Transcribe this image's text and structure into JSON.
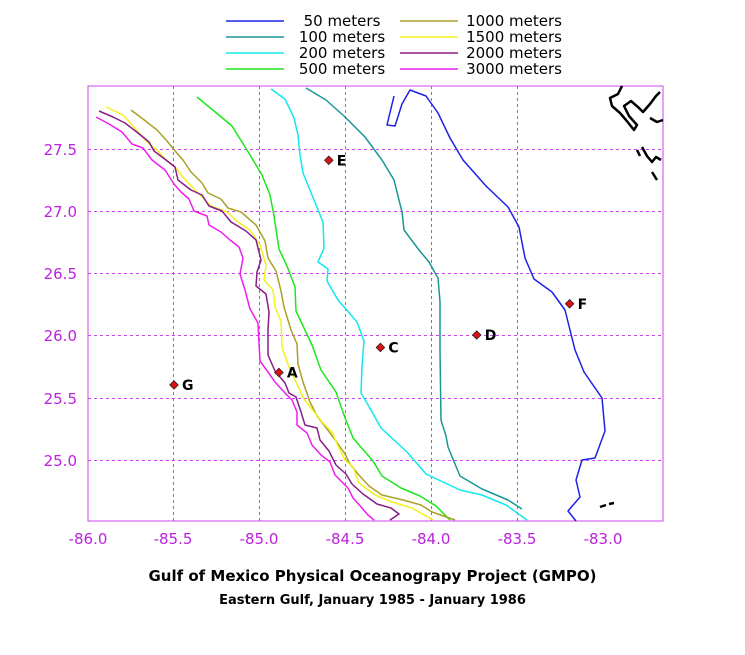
{
  "title": "Gulf of Mexico Physical Oceanograpy Project (GMPO)",
  "subtitle": "Eastern Gulf, January 1985 - January 1986",
  "legend": [
    {
      "label": "50 meters",
      "color": "#1e22e6"
    },
    {
      "label": "100 meters",
      "color": "#1a9696"
    },
    {
      "label": "200 meters",
      "color": "#11e8ee"
    },
    {
      "label": "500 meters",
      "color": "#1ee61e"
    },
    {
      "label": "1000 meters",
      "color": "#aaa028"
    },
    {
      "label": "1500 meters",
      "color": "#f2f21c"
    },
    {
      "label": "2000 meters",
      "color": "#881c88"
    },
    {
      "label": "3000 meters",
      "color": "#ee1eee"
    }
  ],
  "axes": {
    "x_ticks": [
      "-86.0",
      "-85.5",
      "-85.0",
      "-84.5",
      "-84.0",
      "-83.5",
      "-83.0"
    ],
    "y_ticks": [
      "27.5",
      "27.0",
      "26.5",
      "26.0",
      "25.5",
      "25.0"
    ],
    "tick_color": "#bb22dd",
    "grid_color": "#cc44ee"
  },
  "stations": [
    {
      "id": "A",
      "lon": -84.89,
      "lat": 25.7
    },
    {
      "id": "C",
      "lon": -84.3,
      "lat": 25.9
    },
    {
      "id": "D",
      "lon": -83.74,
      "lat": 26.0
    },
    {
      "id": "E",
      "lon": -84.6,
      "lat": 27.4
    },
    {
      "id": "F",
      "lon": -83.2,
      "lat": 26.25
    },
    {
      "id": "G",
      "lon": -85.5,
      "lat": 25.6
    }
  ],
  "station_color": "#dd1111"
}
